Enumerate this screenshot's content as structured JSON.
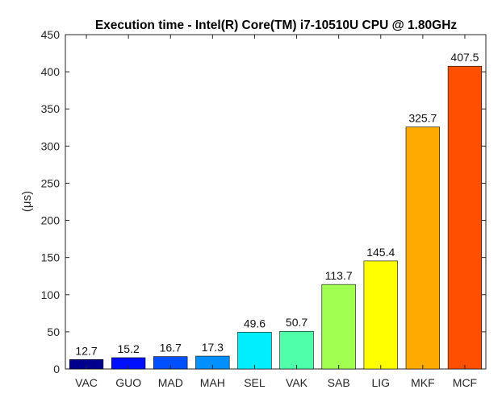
{
  "chart_data": {
    "type": "bar",
    "title": "Execution time - Intel(R) Core(TM) i7-10510U CPU @ 1.80GHz",
    "xlabel": "",
    "ylabel": "(μs)",
    "ylim": [
      0,
      450
    ],
    "yticks": [
      0,
      50,
      100,
      150,
      200,
      250,
      300,
      350,
      400,
      450
    ],
    "grid": false,
    "legend": "none",
    "categories": [
      "VAC",
      "GUO",
      "MAD",
      "MAH",
      "SEL",
      "VAK",
      "SAB",
      "LIG",
      "MKF",
      "MCF"
    ],
    "values": [
      12.7,
      15.2,
      16.7,
      17.3,
      49.6,
      50.7,
      113.7,
      145.4,
      325.7,
      407.5
    ],
    "value_labels": [
      "12.7",
      "15.2",
      "16.7",
      "17.3",
      "49.6",
      "50.7",
      "113.7",
      "145.4",
      "325.7",
      "407.5"
    ],
    "colors": [
      "#00008f",
      "#0010ff",
      "#0050ff",
      "#0090ff",
      "#00eeff",
      "#50ffaa",
      "#a0ff50",
      "#ffff00",
      "#ffaa00",
      "#ff4f00"
    ]
  }
}
